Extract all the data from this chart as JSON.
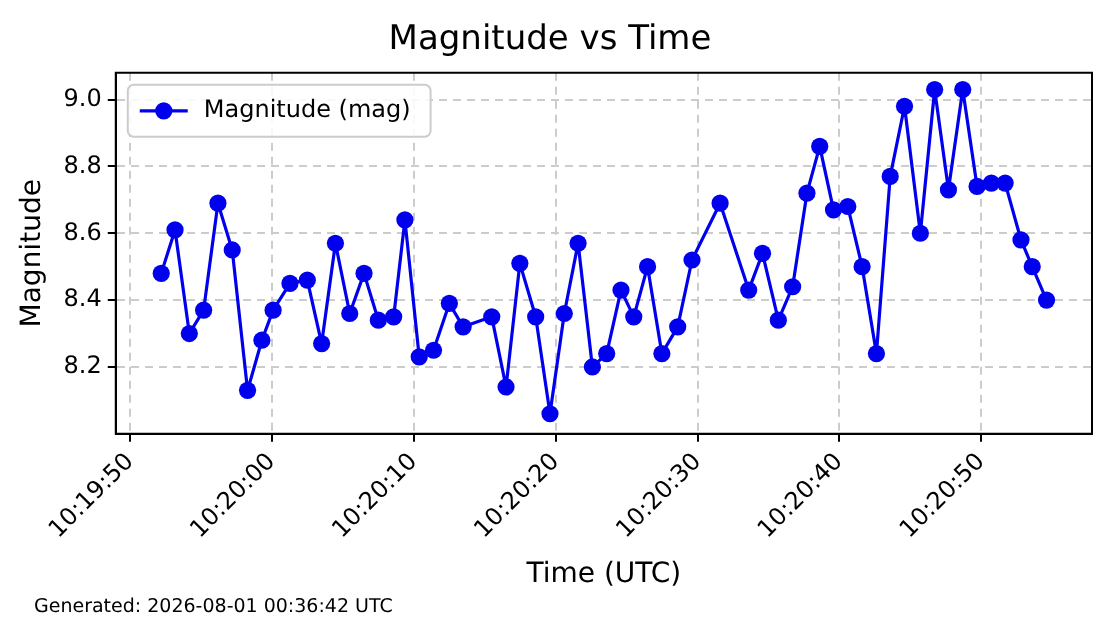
{
  "chart_data": {
    "type": "line",
    "title": "Magnitude vs Time",
    "xlabel": "Time (UTC)",
    "ylabel": "Magnitude",
    "annotations": [
      "Generated: 2026-08-01 00:36:42 UTC"
    ],
    "x": [
      10.33117,
      10.33144,
      10.33172,
      10.332,
      10.33228,
      10.33256,
      10.33286,
      10.33314,
      10.33336,
      10.33369,
      10.33403,
      10.33431,
      10.33458,
      10.33486,
      10.33514,
      10.33542,
      10.33572,
      10.33594,
      10.33622,
      10.3365,
      10.33681,
      10.33708,
      10.33764,
      10.33792,
      10.33819,
      10.3385,
      10.33878,
      10.33906,
      10.33933,
      10.33961,
      10.33989,
      10.34017,
      10.34042,
      10.34069,
      10.34097,
      10.34128,
      10.34156,
      10.34211,
      10.34267,
      10.34294,
      10.34325,
      10.34353,
      10.34381,
      10.34406,
      10.34433,
      10.34461,
      10.34489,
      10.34517,
      10.34544,
      10.34572,
      10.34603,
      10.34631,
      10.34658,
      10.34686,
      10.34714,
      10.34742,
      10.34769,
      10.348,
      10.34822,
      10.3485
    ],
    "series": [
      {
        "name": "Magnitude (mag)",
        "color": "#0000ee",
        "values": [
          8.48,
          8.61,
          8.3,
          8.37,
          8.69,
          8.55,
          8.13,
          8.28,
          8.37,
          8.45,
          8.46,
          8.27,
          8.57,
          8.36,
          8.48,
          8.34,
          8.35,
          8.64,
          8.23,
          8.25,
          8.39,
          8.32,
          8.35,
          8.14,
          8.51,
          8.35,
          8.06,
          8.36,
          8.57,
          8.2,
          8.24,
          8.43,
          8.35,
          8.5,
          8.24,
          8.32,
          8.52,
          8.69,
          8.43,
          8.54,
          8.34,
          8.44,
          8.72,
          8.86,
          8.67,
          8.68,
          8.5,
          8.24,
          8.77,
          8.98,
          8.6,
          9.03,
          8.73,
          9.03,
          8.74,
          8.75,
          8.75,
          8.58,
          8.5,
          8.4
        ]
      }
    ],
    "xlim": [
      10.33028,
      10.34939
    ],
    "xticks": [
      {
        "value": 10.33056,
        "label": "10:19:50"
      },
      {
        "value": 10.33333,
        "label": "10:20:00"
      },
      {
        "value": 10.33611,
        "label": "10:20:10"
      },
      {
        "value": 10.33889,
        "label": "10:20:20"
      },
      {
        "value": 10.34167,
        "label": "10:20:30"
      },
      {
        "value": 10.34444,
        "label": "10:20:40"
      },
      {
        "value": 10.34722,
        "label": "10:20:50"
      }
    ],
    "ylim": [
      8.0,
      9.08
    ],
    "yticks": [
      8.2,
      8.4,
      8.6,
      8.8,
      {
        "value": 9.0,
        "label": "9.0"
      }
    ],
    "grid": true,
    "legend": "top left",
    "marker": "circle",
    "line_style": "solid"
  }
}
